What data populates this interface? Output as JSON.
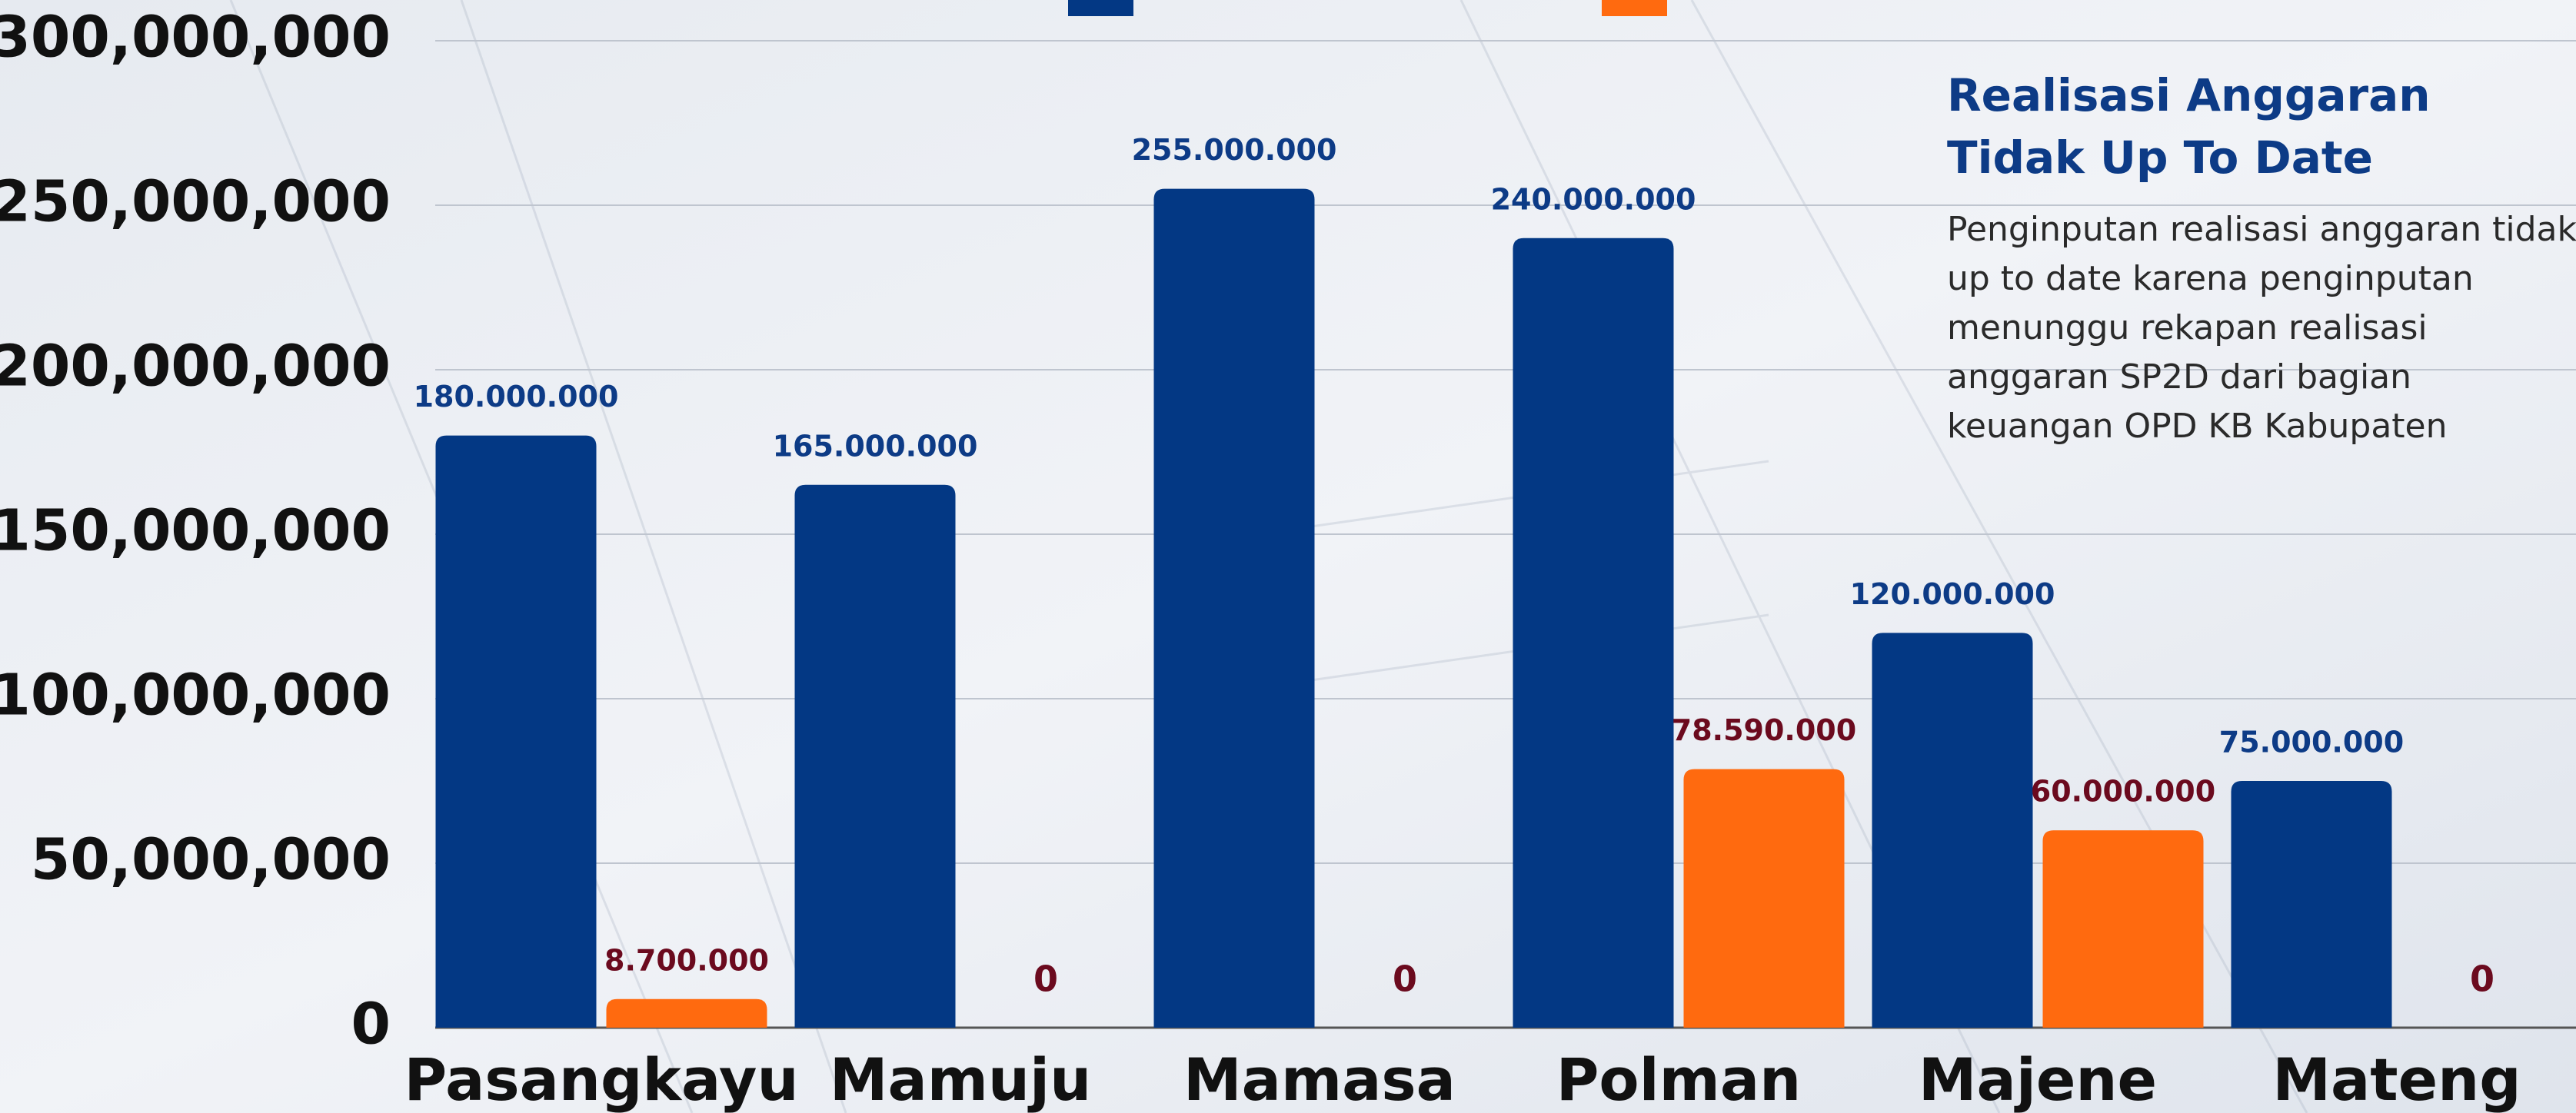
{
  "chart_data": {
    "type": "bar",
    "categories": [
      "Pasangkayu",
      "Mamuju",
      "Mamasa",
      "Polman",
      "Majene",
      "Mateng"
    ],
    "series": [
      {
        "color": "#033884",
        "values": [
          180000000,
          165000000,
          255000000,
          240000000,
          120000000,
          75000000
        ],
        "value_labels": [
          "180.000.000",
          "165.000.000",
          "255.000.000",
          "240.000.000",
          "120.000.000",
          "75.000.000"
        ],
        "label_color": "#0d3b86"
      },
      {
        "color": "#ff6a0f",
        "values": [
          8700000,
          0,
          0,
          78590000,
          60000000,
          0
        ],
        "value_labels": [
          "8.700.000",
          "0",
          "0",
          "78.590.000",
          "60.000.000",
          "0"
        ],
        "label_color": "#6b0a1e"
      }
    ],
    "ylim": [
      0,
      300000000
    ],
    "yticks": [
      0,
      {
        "value": 50000000,
        "label": "50,000,000"
      },
      {
        "value": 100000000,
        "label": "100,000,000"
      },
      {
        "value": 150000000,
        "label": "150,000,000"
      },
      {
        "value": 200000000,
        "label": "200,000,000"
      },
      {
        "value": 250000000,
        "label": "250,000,000"
      },
      {
        "value": 300000000,
        "label": "300,000,000"
      }
    ],
    "grid": true,
    "annotation": {
      "title": [
        "Realisasi Anggaran",
        "Tidak Up To Date"
      ],
      "body": [
        "Penginputan realisasi anggaran tidak",
        "up to date karena penginputan",
        "menunggu rekapan realisasi",
        "anggaran SP2D dari bagian",
        "keuangan OPD KB Kabupaten"
      ]
    }
  }
}
